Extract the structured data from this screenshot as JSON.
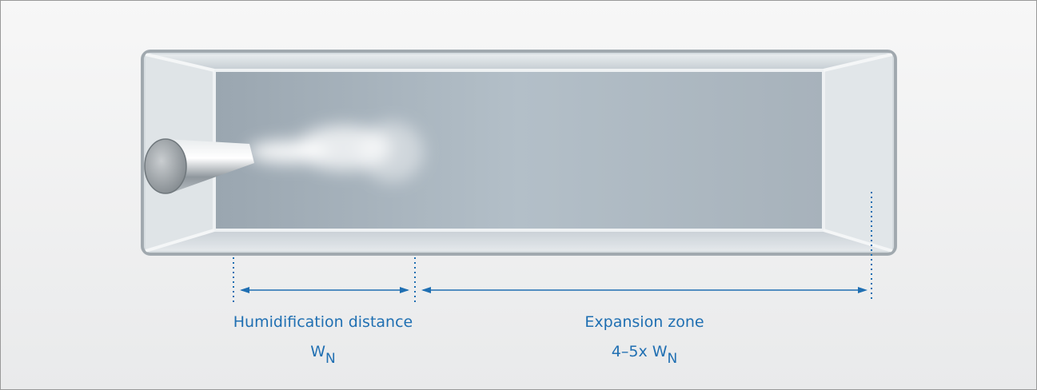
{
  "zones": [
    {
      "label": "Humidification distance",
      "symbol": "W",
      "subscript": "N"
    },
    {
      "label": "Expansion zone",
      "prefix": "4–5x",
      "symbol": "W",
      "subscript": "N"
    }
  ]
}
